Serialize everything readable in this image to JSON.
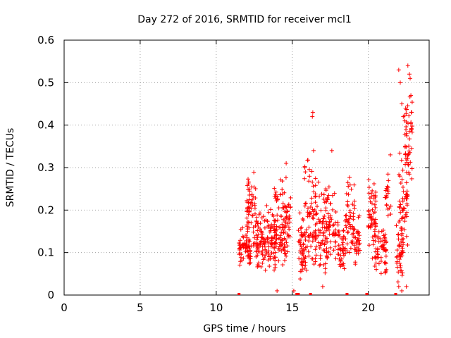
{
  "chart_data": {
    "type": "scatter",
    "title": "Day 272 of 2016, SRMTID for receiver mcl1",
    "xlabel": "GPS time / hours",
    "ylabel": "SRMTID / TECUs",
    "xlim": [
      0,
      24
    ],
    "ylim": [
      0,
      0.6
    ],
    "xticks": [
      0,
      5,
      10,
      15,
      20
    ],
    "xtick_labels": [
      "0",
      "5",
      "10",
      "15",
      "20"
    ],
    "yticks": [
      0,
      0.1,
      0.2,
      0.3,
      0.4,
      0.5,
      0.6
    ],
    "ytick_labels": [
      "0",
      "0.1",
      "0.2",
      "0.3",
      "0.4",
      "0.5",
      "0.6"
    ],
    "grid": true,
    "marker": "+",
    "color": "#ff0000",
    "clusters": [
      {
        "x": [
          11.5,
          12.3
        ],
        "y": [
          0.05,
          0.16
        ],
        "n": 70
      },
      {
        "x": [
          12.0,
          12.6
        ],
        "y": [
          0.08,
          0.31
        ],
        "n": 60
      },
      {
        "x": [
          12.6,
          13.3
        ],
        "y": [
          0.04,
          0.2
        ],
        "n": 70
      },
      {
        "x": [
          13.3,
          14.0
        ],
        "y": [
          0.05,
          0.22
        ],
        "n": 65
      },
      {
        "x": [
          13.8,
          14.6
        ],
        "y": [
          0.04,
          0.29
        ],
        "n": 75
      },
      {
        "x": [
          14.4,
          14.9
        ],
        "y": [
          0.08,
          0.25
        ],
        "n": 40
      },
      {
        "x": [
          15.4,
          15.9
        ],
        "y": [
          0.02,
          0.2
        ],
        "n": 50
      },
      {
        "x": [
          15.8,
          16.6
        ],
        "y": [
          0.05,
          0.33
        ],
        "n": 70
      },
      {
        "x": [
          16.5,
          17.3
        ],
        "y": [
          0.03,
          0.27
        ],
        "n": 70
      },
      {
        "x": [
          17.2,
          17.9
        ],
        "y": [
          0.06,
          0.27
        ],
        "n": 55
      },
      {
        "x": [
          18.0,
          18.5
        ],
        "y": [
          0.04,
          0.19
        ],
        "n": 45
      },
      {
        "x": [
          18.5,
          19.1
        ],
        "y": [
          0.06,
          0.29
        ],
        "n": 55
      },
      {
        "x": [
          19.1,
          19.5
        ],
        "y": [
          0.05,
          0.2
        ],
        "n": 30
      },
      {
        "x": [
          20.0,
          20.5
        ],
        "y": [
          0.08,
          0.29
        ],
        "n": 55
      },
      {
        "x": [
          20.4,
          21.2
        ],
        "y": [
          0.04,
          0.17
        ],
        "n": 60
      },
      {
        "x": [
          21.1,
          21.5
        ],
        "y": [
          0.15,
          0.29
        ],
        "n": 20
      },
      {
        "x": [
          21.8,
          22.3
        ],
        "y": [
          0.01,
          0.2
        ],
        "n": 50
      },
      {
        "x": [
          22.0,
          22.6
        ],
        "y": [
          0.1,
          0.36
        ],
        "n": 50
      },
      {
        "x": [
          22.4,
          22.9
        ],
        "y": [
          0.2,
          0.53
        ],
        "n": 45
      }
    ],
    "points": [
      [
        16.35,
        0.43
      ],
      [
        16.32,
        0.42
      ],
      [
        17.6,
        0.34
      ],
      [
        16.4,
        0.34
      ],
      [
        14.6,
        0.31
      ],
      [
        21.45,
        0.33
      ],
      [
        22.0,
        0.53
      ],
      [
        22.1,
        0.5
      ],
      [
        22.6,
        0.54
      ],
      [
        22.7,
        0.52
      ],
      [
        22.75,
        0.51
      ],
      [
        22.8,
        0.47
      ],
      [
        22.85,
        0.43
      ],
      [
        22.2,
        0.45
      ],
      [
        22.3,
        0.42
      ],
      [
        22.4,
        0.41
      ],
      [
        22.5,
        0.38
      ],
      [
        14.0,
        0.01
      ],
      [
        15.1,
        0.01
      ],
      [
        17.0,
        0.02
      ],
      [
        22.0,
        0.02
      ],
      [
        22.2,
        0.01
      ],
      [
        22.5,
        0.02
      ]
    ],
    "baseline_points": [
      [
        11.5,
        0
      ],
      [
        15.3,
        0
      ],
      [
        15.4,
        0
      ],
      [
        16.2,
        0
      ],
      [
        18.6,
        0
      ],
      [
        19.9,
        0
      ],
      [
        21.8,
        0
      ]
    ]
  }
}
